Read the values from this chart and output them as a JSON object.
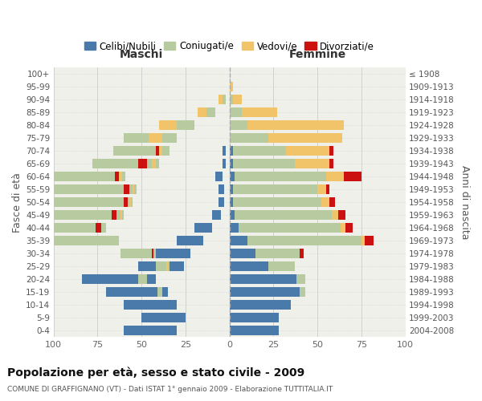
{
  "age_groups_bottom_to_top": [
    "0-4",
    "5-9",
    "10-14",
    "15-19",
    "20-24",
    "25-29",
    "30-34",
    "35-39",
    "40-44",
    "45-49",
    "50-54",
    "55-59",
    "60-64",
    "65-69",
    "70-74",
    "75-79",
    "80-84",
    "85-89",
    "90-94",
    "95-99",
    "100+"
  ],
  "birth_years_bottom_to_top": [
    "2004-2008",
    "1999-2003",
    "1994-1998",
    "1989-1993",
    "1984-1988",
    "1979-1983",
    "1974-1978",
    "1969-1973",
    "1964-1968",
    "1959-1963",
    "1954-1958",
    "1949-1953",
    "1944-1948",
    "1939-1943",
    "1934-1938",
    "1929-1933",
    "1924-1928",
    "1919-1923",
    "1914-1918",
    "1909-1913",
    "≤ 1908"
  ],
  "colors": {
    "celibi": "#4a7aaa",
    "coniugati": "#b8cba0",
    "vedovi": "#f2c46a",
    "divorziati": "#cc1111"
  },
  "maschi_celibi": [
    30,
    25,
    30,
    35,
    42,
    26,
    22,
    15,
    10,
    5,
    3,
    3,
    4,
    2,
    2,
    0,
    0,
    0,
    0,
    0,
    0
  ],
  "maschi_coniugati": [
    0,
    0,
    0,
    3,
    5,
    8,
    20,
    48,
    60,
    55,
    52,
    50,
    55,
    38,
    32,
    30,
    20,
    8,
    2,
    0,
    0
  ],
  "maschi_vedovi": [
    0,
    0,
    0,
    0,
    0,
    1,
    0,
    0,
    0,
    1,
    1,
    1,
    2,
    2,
    4,
    8,
    10,
    5,
    2,
    0,
    0
  ],
  "maschi_divorziati": [
    0,
    0,
    0,
    0,
    0,
    0,
    1,
    0,
    3,
    3,
    2,
    3,
    2,
    5,
    2,
    0,
    0,
    0,
    0,
    0,
    0
  ],
  "femmine_nubili": [
    28,
    28,
    35,
    40,
    38,
    22,
    15,
    10,
    5,
    3,
    2,
    2,
    3,
    2,
    2,
    0,
    0,
    0,
    0,
    0,
    0
  ],
  "femmine_coniugate": [
    0,
    0,
    0,
    3,
    5,
    15,
    25,
    65,
    58,
    55,
    50,
    48,
    52,
    35,
    30,
    22,
    10,
    7,
    2,
    0,
    0
  ],
  "femmine_vedove": [
    0,
    0,
    0,
    0,
    0,
    0,
    0,
    2,
    3,
    4,
    5,
    5,
    10,
    20,
    25,
    42,
    55,
    20,
    5,
    2,
    0
  ],
  "femmine_divorziate": [
    0,
    0,
    0,
    0,
    0,
    0,
    2,
    5,
    4,
    4,
    3,
    2,
    10,
    2,
    2,
    0,
    0,
    0,
    0,
    0,
    0
  ],
  "xlim": 100,
  "xticks": [
    100,
    75,
    50,
    25,
    0,
    25,
    50,
    75,
    100
  ],
  "title": "Popolazione per età, sesso e stato civile - 2009",
  "subtitle": "COMUNE DI GRAFFIGNANO (VT) - Dati ISTAT 1° gennaio 2009 - Elaborazione TUTTITALIA.IT",
  "ylabel_left": "Fasce di età",
  "ylabel_right": "Anni di nascita",
  "label_maschi": "Maschi",
  "label_femmine": "Femmine"
}
